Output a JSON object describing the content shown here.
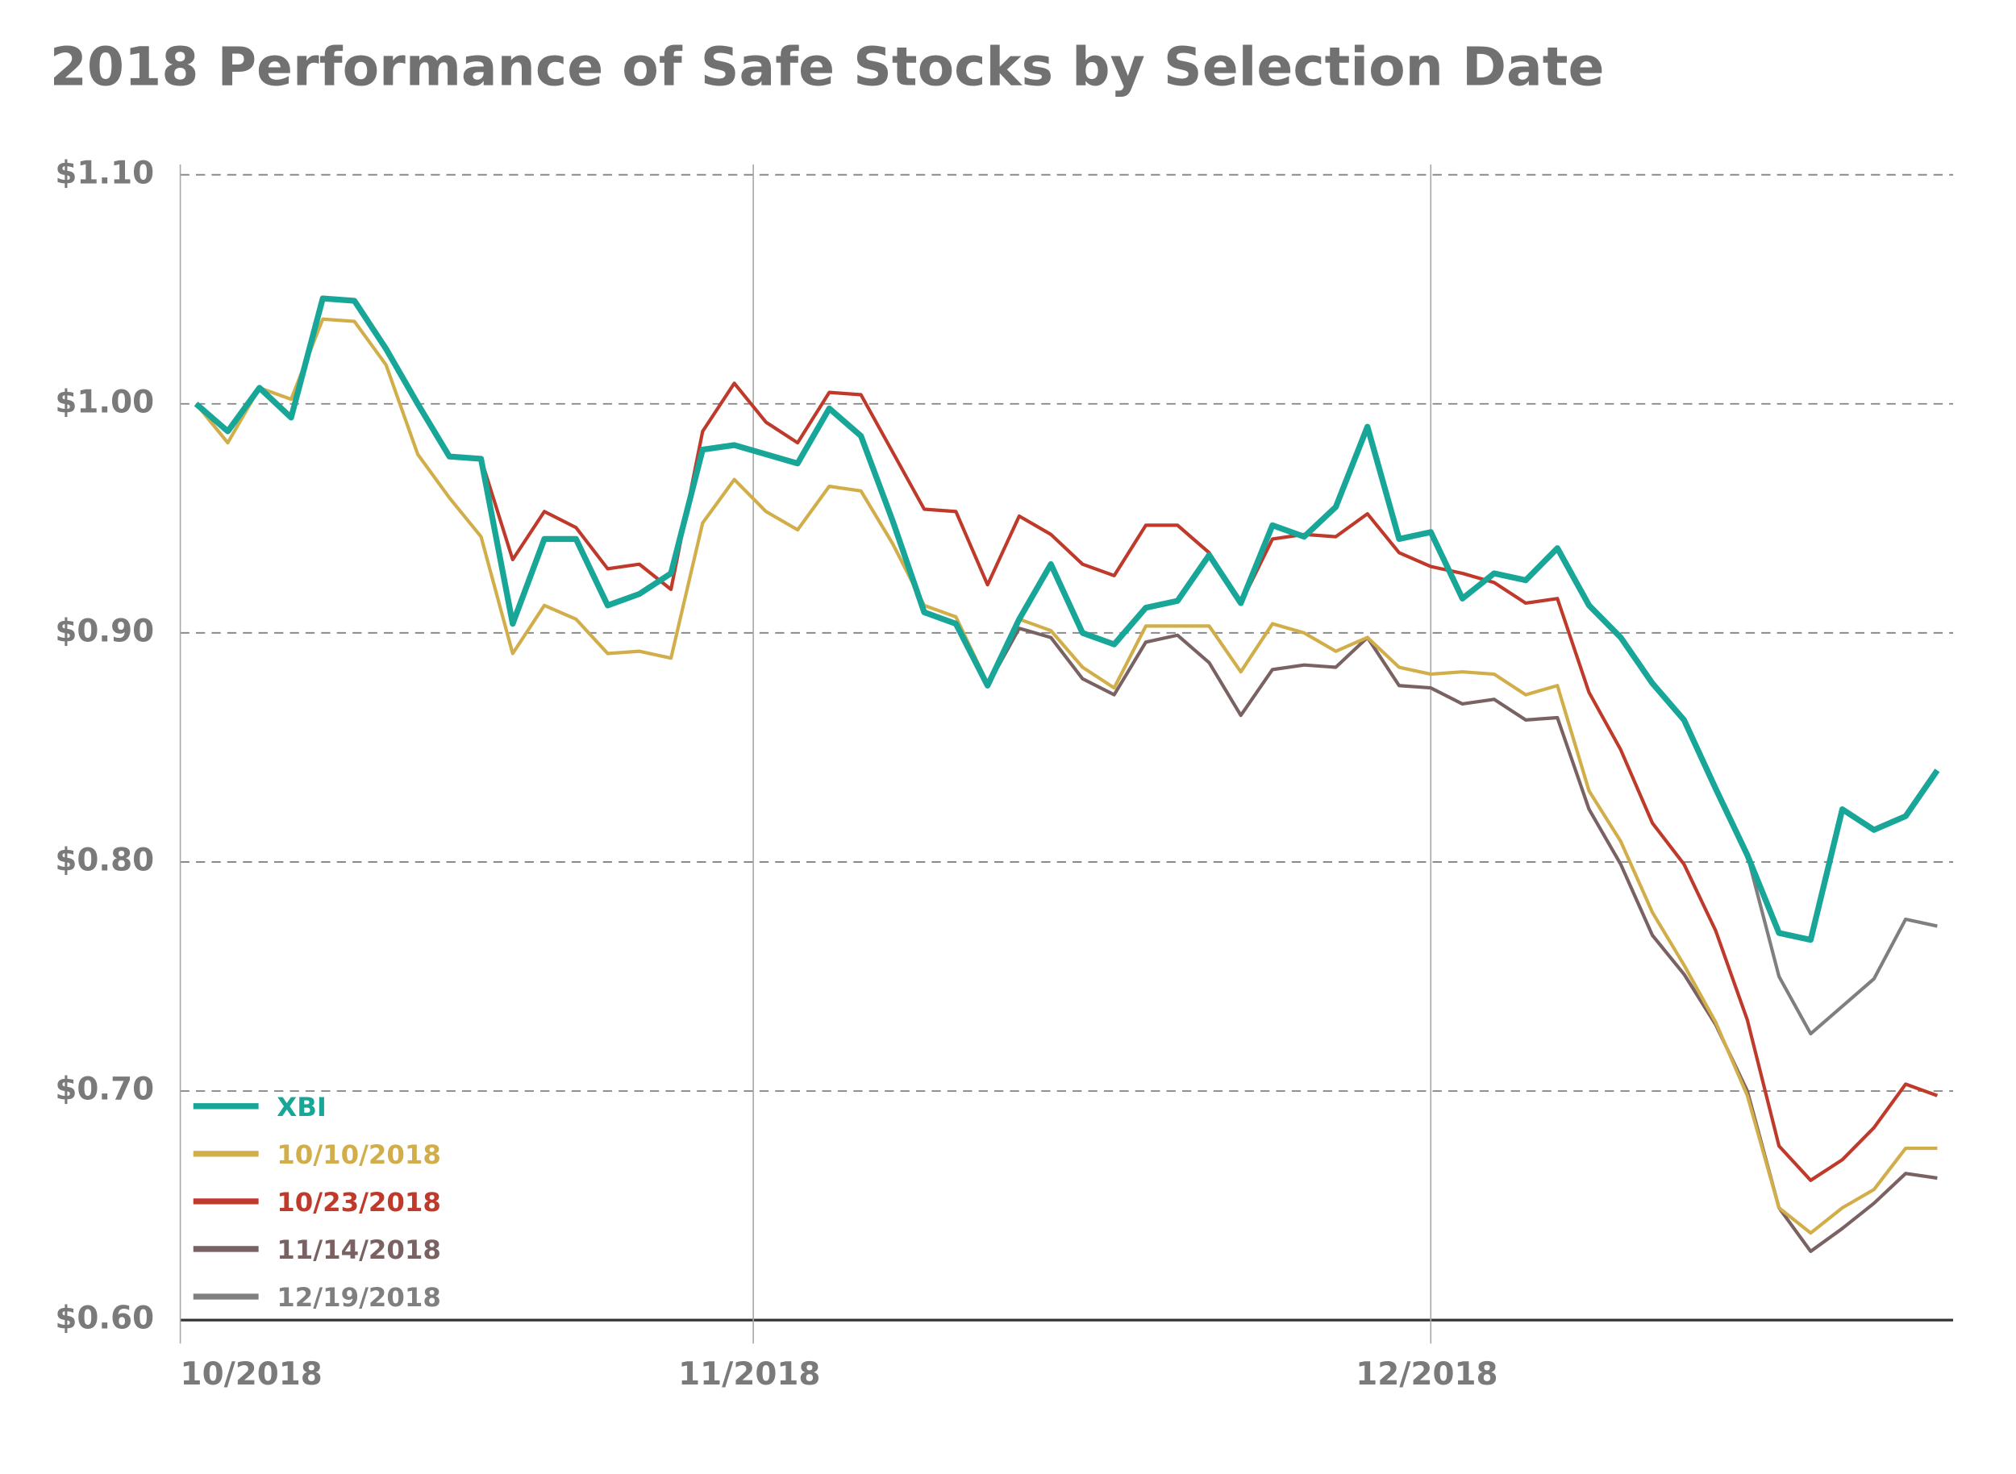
{
  "chart_data": {
    "type": "line",
    "title": "2018 Performance of Safe Stocks by Selection Date",
    "x": [
      0,
      1,
      2,
      3,
      4,
      5,
      6,
      7,
      8,
      9,
      10,
      11,
      12,
      13,
      14,
      15,
      16,
      17,
      18,
      19,
      20,
      21,
      22,
      23,
      24,
      25,
      26,
      27,
      28,
      29,
      30,
      31,
      32,
      33,
      34,
      35,
      36,
      37,
      38,
      39,
      40,
      41,
      42,
      43,
      44,
      45,
      46,
      47,
      48,
      49,
      50,
      51,
      52,
      53,
      54,
      55
    ],
    "xlim": [
      -0.5,
      55.5
    ],
    "xticks": [
      {
        "value": -0.5,
        "label": "10/2018"
      },
      {
        "value": 17.6,
        "label": "11/2018"
      },
      {
        "value": 39,
        "label": "12/2018"
      }
    ],
    "ylim": [
      0.6,
      1.1
    ],
    "yticks": [
      {
        "value": 0.6,
        "label": "$0.60"
      },
      {
        "value": 0.7,
        "label": "$0.70"
      },
      {
        "value": 0.8,
        "label": "$0.80"
      },
      {
        "value": 0.9,
        "label": "$0.90"
      },
      {
        "value": 1.0,
        "label": "$1.00"
      },
      {
        "value": 1.1,
        "label": "$1.10"
      }
    ],
    "grid": true,
    "legend": "lower left",
    "series": [
      {
        "name": "XBI",
        "color": "#17a697",
        "values": [
          1.0,
          0.988,
          1.007,
          0.994,
          1.046,
          1.045,
          1.024,
          1.0,
          0.977,
          0.976,
          0.904,
          0.941,
          0.941,
          0.912,
          0.917,
          0.926,
          0.98,
          0.982,
          0.978,
          0.974,
          0.998,
          0.986,
          0.949,
          0.909,
          0.904,
          0.877,
          0.906,
          0.93,
          0.9,
          0.895,
          0.911,
          0.914,
          0.934,
          0.913,
          0.947,
          0.942,
          0.955,
          0.99,
          0.941,
          0.944,
          0.915,
          0.926,
          0.923,
          0.937,
          0.912,
          0.898,
          0.878,
          0.862,
          0.832,
          0.803,
          0.769,
          0.766,
          0.823,
          0.814,
          0.82,
          0.84
        ]
      },
      {
        "name": "10/10/2018",
        "color": "#d1ae4a",
        "values": [
          1.0,
          0.983,
          1.007,
          1.002,
          1.037,
          1.036,
          1.017,
          0.978,
          0.959,
          0.942,
          0.891,
          0.912,
          0.906,
          0.891,
          0.892,
          0.889,
          0.948,
          0.967,
          0.953,
          0.945,
          0.964,
          0.962,
          0.939,
          0.912,
          0.907,
          0.878,
          0.906,
          0.901,
          0.885,
          0.876,
          0.903,
          0.903,
          0.903,
          0.883,
          0.904,
          0.9,
          0.892,
          0.898,
          0.885,
          0.882,
          0.883,
          0.882,
          0.873,
          0.877,
          0.831,
          0.809,
          0.778,
          0.755,
          0.73,
          0.698,
          0.649,
          0.638,
          0.649,
          0.657,
          0.675,
          0.675
        ]
      },
      {
        "name": "10/23/2018",
        "color": "#bf3a2b",
        "values": [
          null,
          null,
          null,
          null,
          null,
          null,
          null,
          null,
          null,
          0.976,
          0.932,
          0.953,
          0.946,
          0.928,
          0.93,
          0.919,
          0.988,
          1.009,
          0.992,
          0.983,
          1.005,
          1.004,
          0.979,
          0.954,
          0.953,
          0.921,
          0.951,
          0.943,
          0.93,
          0.925,
          0.947,
          0.947,
          0.935,
          0.913,
          0.941,
          0.943,
          0.942,
          0.952,
          0.935,
          0.929,
          0.926,
          0.922,
          0.913,
          0.915,
          0.874,
          0.849,
          0.817,
          0.799,
          0.77,
          0.731,
          0.676,
          0.661,
          0.67,
          0.684,
          0.703,
          0.698
        ]
      },
      {
        "name": "11/14/2018",
        "color": "#7a6262",
        "values": [
          null,
          null,
          null,
          null,
          null,
          null,
          null,
          null,
          null,
          null,
          null,
          null,
          null,
          null,
          null,
          null,
          null,
          null,
          null,
          null,
          null,
          null,
          null,
          null,
          null,
          0.877,
          0.902,
          0.898,
          0.88,
          0.873,
          0.896,
          0.899,
          0.887,
          0.864,
          0.884,
          0.886,
          0.885,
          0.898,
          0.877,
          0.876,
          0.869,
          0.871,
          0.862,
          0.863,
          0.823,
          0.799,
          0.768,
          0.751,
          0.729,
          0.7,
          0.649,
          0.63,
          0.64,
          0.651,
          0.664,
          0.662
        ]
      },
      {
        "name": "12/19/2018",
        "color": "#7f7f7f",
        "values": [
          null,
          null,
          null,
          null,
          null,
          null,
          null,
          null,
          null,
          null,
          null,
          null,
          null,
          null,
          null,
          null,
          null,
          null,
          null,
          null,
          null,
          null,
          null,
          null,
          null,
          null,
          null,
          null,
          null,
          null,
          null,
          null,
          null,
          null,
          null,
          null,
          null,
          null,
          null,
          null,
          null,
          null,
          null,
          null,
          null,
          null,
          null,
          null,
          null,
          0.803,
          0.75,
          0.725,
          0.737,
          0.749,
          0.775,
          0.772
        ]
      }
    ]
  }
}
